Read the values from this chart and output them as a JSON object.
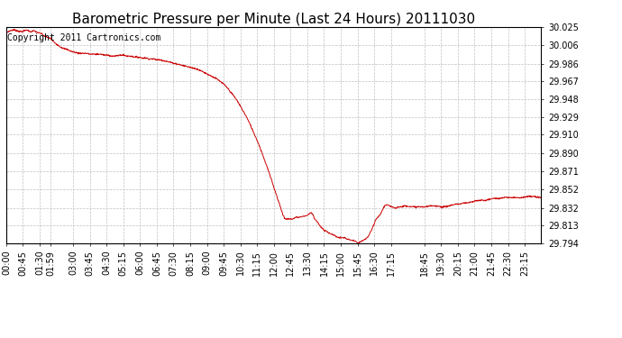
{
  "title": "Barometric Pressure per Minute (Last 24 Hours) 20111030",
  "copyright_text": "Copyright 2011 Cartronics.com",
  "line_color": "#cc0000",
  "background_color": "#ffffff",
  "plot_bg_color": "#ffffff",
  "grid_color": "#c0c0c0",
  "ylim": [
    29.794,
    30.025
  ],
  "yticks": [
    29.794,
    29.813,
    29.832,
    29.852,
    29.871,
    29.89,
    29.91,
    29.929,
    29.948,
    29.967,
    29.986,
    30.006,
    30.025
  ],
  "xtick_labels": [
    "00:00",
    "00:45",
    "01:30",
    "01:59",
    "03:00",
    "03:45",
    "04:30",
    "05:15",
    "06:00",
    "06:45",
    "07:30",
    "08:15",
    "09:00",
    "09:45",
    "10:30",
    "11:15",
    "12:00",
    "12:45",
    "13:30",
    "14:15",
    "15:00",
    "15:45",
    "16:30",
    "17:15",
    "18:45",
    "19:30",
    "20:15",
    "21:00",
    "21:45",
    "22:30",
    "23:15"
  ],
  "title_fontsize": 11,
  "copyright_fontsize": 7,
  "tick_fontsize": 7,
  "ctrl_points": [
    [
      0,
      30.019
    ],
    [
      10,
      30.021
    ],
    [
      20,
      30.022
    ],
    [
      30,
      30.021
    ],
    [
      40,
      30.02
    ],
    [
      50,
      30.021
    ],
    [
      55,
      30.022
    ],
    [
      65,
      30.02
    ],
    [
      75,
      30.021
    ],
    [
      85,
      30.019
    ],
    [
      95,
      30.018
    ],
    [
      100,
      30.016
    ],
    [
      110,
      30.014
    ],
    [
      119,
      30.013
    ],
    [
      125,
      30.01
    ],
    [
      135,
      30.007
    ],
    [
      145,
      30.004
    ],
    [
      155,
      30.002
    ],
    [
      165,
      30.001
    ],
    [
      175,
      29.999
    ],
    [
      185,
      29.998
    ],
    [
      195,
      29.997
    ],
    [
      205,
      29.997
    ],
    [
      215,
      29.997
    ],
    [
      225,
      29.996
    ],
    [
      235,
      29.996
    ],
    [
      245,
      29.996
    ],
    [
      255,
      29.996
    ],
    [
      265,
      29.995
    ],
    [
      275,
      29.995
    ],
    [
      285,
      29.994
    ],
    [
      295,
      29.994
    ],
    [
      305,
      29.995
    ],
    [
      315,
      29.995
    ],
    [
      325,
      29.994
    ],
    [
      335,
      29.994
    ],
    [
      345,
      29.993
    ],
    [
      355,
      29.993
    ],
    [
      365,
      29.992
    ],
    [
      375,
      29.992
    ],
    [
      385,
      29.991
    ],
    [
      395,
      29.991
    ],
    [
      405,
      29.99
    ],
    [
      415,
      29.99
    ],
    [
      425,
      29.989
    ],
    [
      435,
      29.988
    ],
    [
      445,
      29.987
    ],
    [
      455,
      29.986
    ],
    [
      465,
      29.985
    ],
    [
      475,
      29.984
    ],
    [
      485,
      29.983
    ],
    [
      495,
      29.982
    ],
    [
      505,
      29.981
    ],
    [
      515,
      29.98
    ],
    [
      525,
      29.978
    ],
    [
      535,
      29.976
    ],
    [
      545,
      29.974
    ],
    [
      555,
      29.972
    ],
    [
      565,
      29.97
    ],
    [
      575,
      29.967
    ],
    [
      585,
      29.964
    ],
    [
      595,
      29.96
    ],
    [
      605,
      29.955
    ],
    [
      615,
      29.95
    ],
    [
      625,
      29.944
    ],
    [
      635,
      29.937
    ],
    [
      645,
      29.93
    ],
    [
      655,
      29.922
    ],
    [
      665,
      29.913
    ],
    [
      675,
      29.904
    ],
    [
      685,
      29.894
    ],
    [
      695,
      29.883
    ],
    [
      705,
      29.872
    ],
    [
      715,
      29.86
    ],
    [
      725,
      29.848
    ],
    [
      735,
      29.836
    ],
    [
      745,
      29.824
    ],
    [
      750,
      29.82
    ],
    [
      755,
      29.82
    ],
    [
      760,
      29.82
    ],
    [
      765,
      29.82
    ],
    [
      770,
      29.82
    ],
    [
      775,
      29.821
    ],
    [
      780,
      29.822
    ],
    [
      790,
      29.822
    ],
    [
      800,
      29.823
    ],
    [
      810,
      29.824
    ],
    [
      820,
      29.827
    ],
    [
      825,
      29.825
    ],
    [
      830,
      29.82
    ],
    [
      835,
      29.818
    ],
    [
      840,
      29.815
    ],
    [
      845,
      29.812
    ],
    [
      850,
      29.81
    ],
    [
      855,
      29.808
    ],
    [
      860,
      29.807
    ],
    [
      865,
      29.806
    ],
    [
      870,
      29.805
    ],
    [
      875,
      29.804
    ],
    [
      880,
      29.803
    ],
    [
      885,
      29.802
    ],
    [
      890,
      29.801
    ],
    [
      895,
      29.8
    ],
    [
      900,
      29.8
    ],
    [
      905,
      29.8
    ],
    [
      910,
      29.8
    ],
    [
      915,
      29.799
    ],
    [
      920,
      29.798
    ],
    [
      925,
      29.798
    ],
    [
      930,
      29.797
    ],
    [
      935,
      29.797
    ],
    [
      940,
      29.796
    ],
    [
      945,
      29.794
    ],
    [
      950,
      29.795
    ],
    [
      955,
      29.796
    ],
    [
      960,
      29.797
    ],
    [
      965,
      29.798
    ],
    [
      970,
      29.8
    ],
    [
      975,
      29.802
    ],
    [
      980,
      29.806
    ],
    [
      985,
      29.81
    ],
    [
      990,
      29.815
    ],
    [
      995,
      29.82
    ],
    [
      1000,
      29.822
    ],
    [
      1005,
      29.824
    ],
    [
      1010,
      29.828
    ],
    [
      1015,
      29.832
    ],
    [
      1020,
      29.835
    ],
    [
      1025,
      29.835
    ],
    [
      1030,
      29.834
    ],
    [
      1035,
      29.833
    ],
    [
      1040,
      29.833
    ],
    [
      1045,
      29.832
    ],
    [
      1050,
      29.832
    ],
    [
      1055,
      29.833
    ],
    [
      1060,
      29.833
    ],
    [
      1065,
      29.833
    ],
    [
      1070,
      29.834
    ],
    [
      1080,
      29.834
    ],
    [
      1090,
      29.833
    ],
    [
      1100,
      29.833
    ],
    [
      1110,
      29.833
    ],
    [
      1120,
      29.833
    ],
    [
      1130,
      29.833
    ],
    [
      1140,
      29.834
    ],
    [
      1150,
      29.834
    ],
    [
      1160,
      29.834
    ],
    [
      1170,
      29.833
    ],
    [
      1180,
      29.833
    ],
    [
      1190,
      29.834
    ],
    [
      1200,
      29.835
    ],
    [
      1210,
      29.836
    ],
    [
      1220,
      29.836
    ],
    [
      1230,
      29.837
    ],
    [
      1240,
      29.837
    ],
    [
      1250,
      29.838
    ],
    [
      1260,
      29.839
    ],
    [
      1270,
      29.84
    ],
    [
      1280,
      29.84
    ],
    [
      1290,
      29.84
    ],
    [
      1300,
      29.841
    ],
    [
      1310,
      29.842
    ],
    [
      1320,
      29.842
    ],
    [
      1330,
      29.842
    ],
    [
      1340,
      29.843
    ],
    [
      1350,
      29.843
    ],
    [
      1360,
      29.843
    ],
    [
      1370,
      29.843
    ],
    [
      1380,
      29.843
    ],
    [
      1390,
      29.843
    ],
    [
      1400,
      29.844
    ],
    [
      1410,
      29.844
    ],
    [
      1420,
      29.844
    ],
    [
      1430,
      29.843
    ],
    [
      1439,
      29.843
    ]
  ]
}
